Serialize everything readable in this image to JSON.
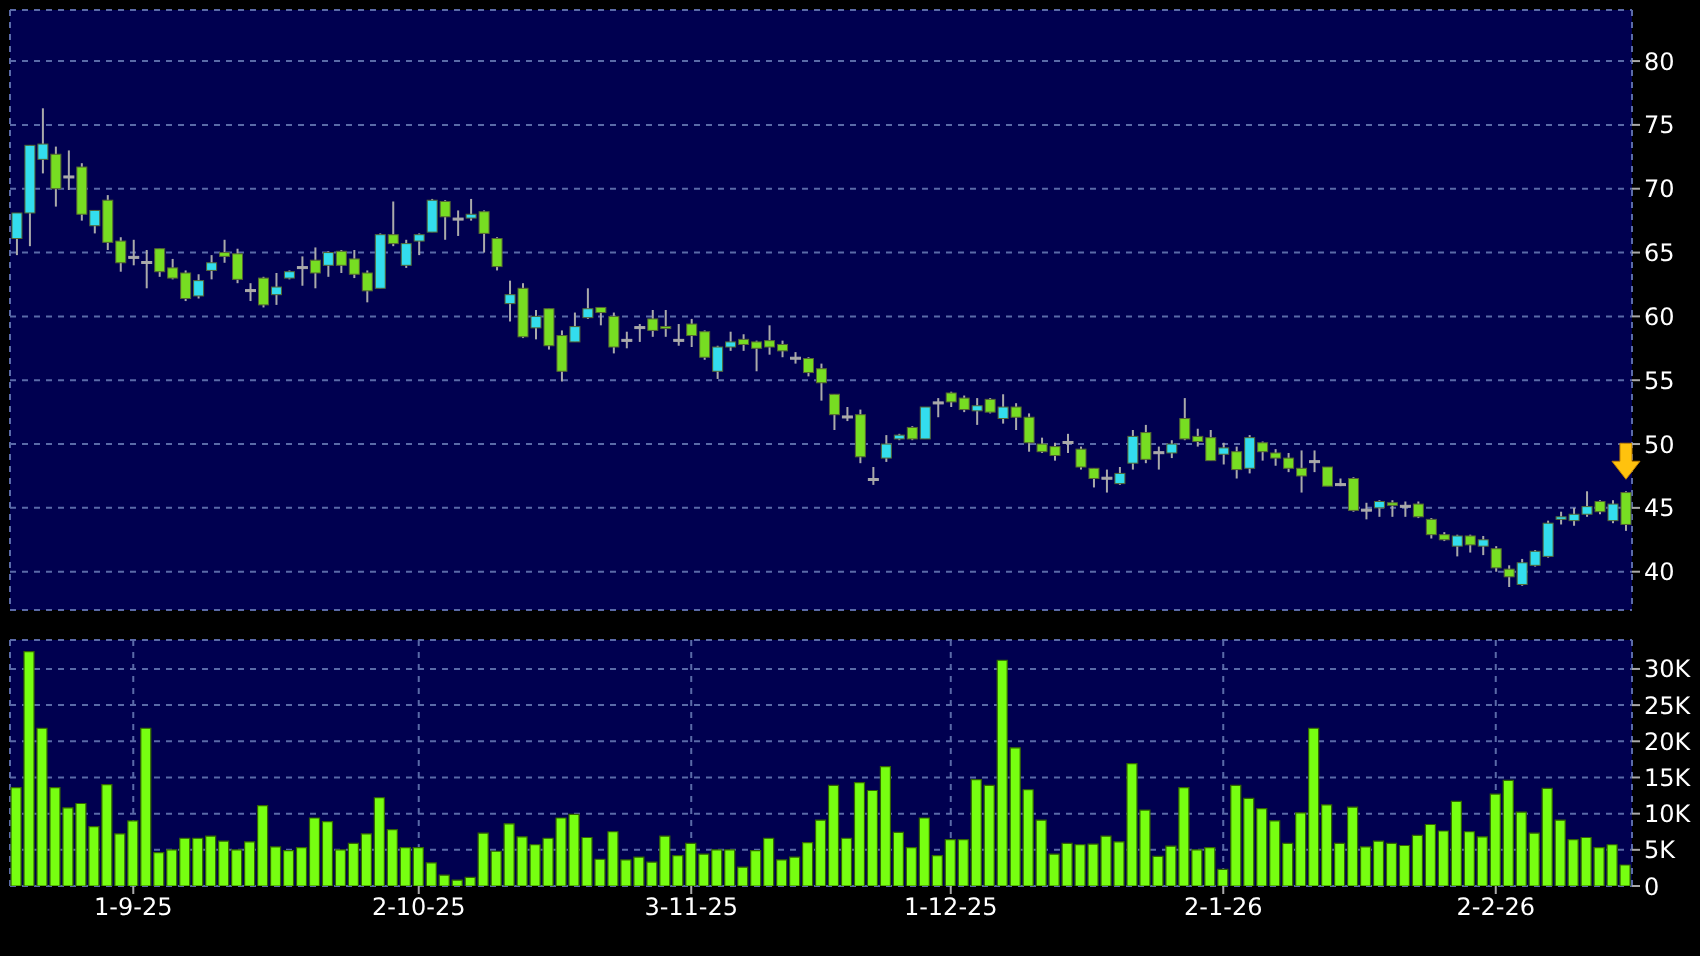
{
  "chart_data": [
    {
      "type": "candlestick",
      "tick_labels": "y",
      "grid": true,
      "categories": [
        null,
        null,
        null,
        null,
        null,
        null,
        null,
        null,
        null,
        null,
        null,
        null,
        null,
        null,
        null,
        null,
        null,
        null,
        null,
        null,
        null,
        null,
        null,
        null,
        null,
        null,
        null,
        null,
        null,
        null,
        null,
        null,
        null,
        null,
        null,
        null,
        null,
        null,
        null,
        null,
        null,
        null,
        null,
        null,
        null,
        null,
        null,
        null,
        null,
        null,
        null,
        null,
        null,
        null,
        null,
        null,
        null,
        null,
        null,
        null,
        null,
        null,
        null,
        null,
        null,
        null,
        null,
        null,
        null,
        null,
        null,
        null,
        null,
        null,
        null,
        null,
        null,
        null,
        null,
        null,
        null,
        null,
        null,
        null,
        null,
        null,
        null,
        null,
        null,
        null,
        null,
        null,
        null,
        null,
        null,
        null,
        null,
        null,
        null,
        null,
        null,
        null,
        null,
        null,
        null,
        null,
        null,
        null,
        null,
        null,
        null,
        null,
        null,
        null,
        null,
        null,
        null,
        null,
        null,
        null,
        null,
        null,
        null,
        null,
        null
      ],
      "ohlc": [
        [
          66.1,
          68.1,
          64.8,
          68.1
        ],
        [
          68.1,
          73.4,
          65.5,
          73.4
        ],
        [
          72.3,
          76.3,
          71.2,
          73.5
        ],
        [
          72.7,
          73.3,
          68.6,
          70.0
        ],
        [
          71.0,
          73.0,
          69.9,
          71.0
        ],
        [
          71.7,
          72.0,
          67.5,
          68.0
        ],
        [
          67.1,
          68.3,
          66.5,
          68.3
        ],
        [
          69.1,
          69.5,
          65.2,
          65.8
        ],
        [
          65.9,
          66.2,
          63.5,
          64.2
        ],
        [
          64.7,
          66.0,
          64.0,
          64.7
        ],
        [
          64.3,
          65.2,
          62.2,
          64.3
        ],
        [
          65.3,
          65.3,
          63.1,
          63.5
        ],
        [
          63.8,
          64.5,
          62.9,
          63.0
        ],
        [
          63.4,
          63.6,
          61.2,
          61.4
        ],
        [
          61.6,
          63.3,
          61.4,
          62.8
        ],
        [
          63.6,
          64.8,
          62.9,
          64.2
        ],
        [
          65.0,
          66.0,
          64.2,
          64.7
        ],
        [
          64.9,
          65.3,
          62.6,
          62.9
        ],
        [
          62.1,
          62.6,
          61.2,
          62.1
        ],
        [
          63.0,
          63.1,
          60.7,
          60.9
        ],
        [
          61.7,
          63.4,
          60.9,
          62.3
        ],
        [
          63.0,
          63.6,
          62.9,
          63.5
        ],
        [
          63.9,
          64.7,
          62.4,
          63.9
        ],
        [
          64.4,
          65.4,
          62.2,
          63.4
        ],
        [
          64.0,
          65.1,
          63.1,
          65.0
        ],
        [
          65.1,
          65.2,
          63.4,
          64.0
        ],
        [
          64.5,
          65.2,
          63.0,
          63.3
        ],
        [
          63.4,
          63.6,
          61.1,
          62.0
        ],
        [
          62.2,
          66.5,
          62.2,
          66.4
        ],
        [
          66.4,
          69.0,
          65.5,
          65.7
        ],
        [
          64.0,
          66.0,
          63.8,
          65.7
        ],
        [
          65.9,
          66.5,
          64.8,
          66.4
        ],
        [
          66.6,
          69.2,
          66.6,
          69.1
        ],
        [
          69.0,
          69.1,
          66.0,
          67.8
        ],
        [
          67.7,
          68.3,
          66.3,
          67.7
        ],
        [
          67.7,
          69.2,
          67.5,
          68.0
        ],
        [
          68.2,
          68.3,
          65.0,
          66.5
        ],
        [
          66.1,
          66.2,
          63.6,
          63.9
        ],
        [
          61.0,
          62.8,
          59.6,
          61.7
        ],
        [
          62.2,
          62.6,
          58.3,
          58.4
        ],
        [
          59.1,
          60.5,
          58.2,
          60.0
        ],
        [
          60.6,
          60.6,
          57.4,
          57.7
        ],
        [
          58.5,
          58.9,
          54.9,
          55.7
        ],
        [
          58.0,
          60.3,
          58.0,
          59.2
        ],
        [
          59.9,
          62.2,
          59.8,
          60.6
        ],
        [
          60.7,
          60.7,
          59.3,
          60.3
        ],
        [
          60.0,
          60.3,
          57.1,
          57.6
        ],
        [
          58.2,
          58.8,
          57.5,
          58.2
        ],
        [
          59.2,
          59.4,
          58.0,
          59.2
        ],
        [
          59.8,
          60.5,
          58.4,
          58.9
        ],
        [
          59.2,
          60.5,
          58.4,
          59.1
        ],
        [
          58.2,
          59.4,
          57.7,
          58.2
        ],
        [
          59.4,
          59.8,
          57.6,
          58.5
        ],
        [
          58.8,
          58.9,
          56.6,
          56.8
        ],
        [
          55.7,
          57.7,
          55.1,
          57.6
        ],
        [
          57.6,
          58.8,
          57.3,
          58.0
        ],
        [
          58.2,
          58.6,
          57.3,
          57.8
        ],
        [
          58.0,
          58.1,
          55.7,
          57.5
        ],
        [
          58.1,
          59.3,
          57.0,
          57.6
        ],
        [
          57.8,
          58.1,
          56.8,
          57.3
        ],
        [
          56.8,
          57.2,
          56.3,
          56.8
        ],
        [
          56.7,
          56.8,
          55.3,
          55.6
        ],
        [
          55.9,
          56.3,
          53.4,
          54.8
        ],
        [
          53.9,
          53.9,
          51.1,
          52.3
        ],
        [
          52.2,
          52.9,
          51.8,
          52.2
        ],
        [
          52.3,
          52.7,
          48.5,
          49.0
        ],
        [
          47.3,
          48.2,
          46.8,
          47.3
        ],
        [
          48.9,
          50.7,
          48.6,
          50.0
        ],
        [
          50.4,
          50.8,
          50.3,
          50.7
        ],
        [
          51.3,
          51.4,
          50.3,
          50.4
        ],
        [
          50.4,
          52.9,
          50.4,
          52.9
        ],
        [
          53.3,
          53.6,
          52.1,
          53.3
        ],
        [
          54.0,
          54.1,
          52.9,
          53.3
        ],
        [
          53.6,
          53.8,
          52.5,
          52.7
        ],
        [
          52.6,
          53.6,
          51.5,
          53.0
        ],
        [
          53.5,
          53.6,
          52.4,
          52.5
        ],
        [
          52.0,
          53.9,
          51.6,
          52.9
        ],
        [
          52.9,
          53.2,
          51.1,
          52.1
        ],
        [
          52.1,
          52.4,
          49.4,
          50.1
        ],
        [
          50.0,
          50.5,
          49.3,
          49.4
        ],
        [
          49.8,
          50.1,
          48.7,
          49.1
        ],
        [
          50.2,
          50.8,
          49.3,
          50.2
        ],
        [
          49.6,
          49.8,
          48.0,
          48.2
        ],
        [
          48.1,
          48.1,
          46.6,
          47.3
        ],
        [
          47.4,
          48.0,
          46.2,
          47.4
        ],
        [
          46.9,
          48.2,
          46.8,
          47.7
        ],
        [
          48.5,
          51.1,
          48.0,
          50.6
        ],
        [
          50.9,
          51.5,
          48.5,
          48.8
        ],
        [
          49.4,
          49.8,
          48.0,
          49.4
        ],
        [
          49.3,
          50.3,
          48.9,
          50.0
        ],
        [
          52.0,
          53.6,
          50.3,
          50.4
        ],
        [
          50.6,
          51.2,
          49.8,
          50.2
        ],
        [
          50.5,
          51.1,
          48.7,
          48.7
        ],
        [
          49.2,
          50.1,
          48.4,
          49.7
        ],
        [
          49.4,
          49.8,
          47.3,
          48.0
        ],
        [
          48.1,
          50.7,
          47.7,
          50.5
        ],
        [
          50.1,
          50.2,
          48.7,
          49.4
        ],
        [
          49.3,
          49.6,
          48.3,
          48.9
        ],
        [
          48.9,
          49.3,
          47.8,
          48.1
        ],
        [
          48.1,
          49.5,
          46.2,
          47.5
        ],
        [
          48.7,
          49.5,
          47.8,
          48.7
        ],
        [
          48.2,
          48.2,
          46.7,
          46.7
        ],
        [
          46.9,
          47.3,
          46.7,
          46.9
        ],
        [
          47.3,
          47.4,
          44.7,
          44.8
        ],
        [
          44.9,
          45.4,
          44.1,
          44.9
        ],
        [
          45.0,
          45.6,
          44.3,
          45.5
        ],
        [
          45.4,
          45.6,
          44.3,
          45.2
        ],
        [
          45.2,
          45.5,
          44.3,
          45.2
        ],
        [
          45.3,
          45.5,
          44.2,
          44.3
        ],
        [
          44.1,
          44.2,
          42.6,
          42.9
        ],
        [
          42.9,
          43.1,
          42.4,
          42.5
        ],
        [
          42.0,
          42.9,
          41.2,
          42.8
        ],
        [
          42.8,
          42.9,
          41.5,
          42.1
        ],
        [
          42.0,
          42.8,
          41.3,
          42.5
        ],
        [
          41.8,
          42.0,
          40.0,
          40.3
        ],
        [
          40.2,
          40.5,
          38.8,
          39.6
        ],
        [
          39.0,
          41.0,
          38.9,
          40.7
        ],
        [
          40.5,
          41.7,
          40.4,
          41.6
        ],
        [
          41.2,
          44.0,
          41.1,
          43.8
        ],
        [
          44.1,
          44.7,
          43.7,
          44.3
        ],
        [
          44.0,
          45.0,
          43.6,
          44.5
        ],
        [
          44.5,
          46.3,
          44.3,
          45.1
        ],
        [
          45.5,
          45.6,
          44.5,
          44.7
        ],
        [
          44.0,
          45.6,
          43.8,
          45.3
        ],
        [
          46.2,
          46.3,
          43.2,
          43.7
        ]
      ],
      "colors": [
        "#33ddee",
        "#33ddee",
        "#33ddee",
        "#77dd22",
        "#aaaaaa",
        "#77dd22",
        "#33ddee",
        "#77dd22",
        "#77dd22",
        "#aaaaaa",
        "#aaaaaa",
        "#77dd22",
        "#77dd22",
        "#77dd22",
        "#33ddee",
        "#33ddee",
        "#77dd22",
        "#77dd22",
        "#aaaaaa",
        "#77dd22",
        "#33ddee",
        "#33ddee",
        "#aaaaaa",
        "#77dd22",
        "#33ddee",
        "#77dd22",
        "#77dd22",
        "#77dd22",
        "#33ddee",
        "#77dd22",
        "#33ddee",
        "#33ddee",
        "#33ddee",
        "#77dd22",
        "#aaaaaa",
        "#33ddee",
        "#77dd22",
        "#77dd22",
        "#33ddee",
        "#77dd22",
        "#33ddee",
        "#77dd22",
        "#77dd22",
        "#33ddee",
        "#33ddee",
        "#77dd22",
        "#77dd22",
        "#aaaaaa",
        "#aaaaaa",
        "#77dd22",
        "#77dd22",
        "#aaaaaa",
        "#77dd22",
        "#77dd22",
        "#33ddee",
        "#33ddee",
        "#77dd22",
        "#77dd22",
        "#77dd22",
        "#77dd22",
        "#aaaaaa",
        "#77dd22",
        "#77dd22",
        "#77dd22",
        "#aaaaaa",
        "#77dd22",
        "#aaaaaa",
        "#33ddee",
        "#33ddee",
        "#77dd22",
        "#33ddee",
        "#aaaaaa",
        "#77dd22",
        "#77dd22",
        "#33ddee",
        "#77dd22",
        "#33ddee",
        "#77dd22",
        "#77dd22",
        "#77dd22",
        "#77dd22",
        "#aaaaaa",
        "#77dd22",
        "#77dd22",
        "#aaaaaa",
        "#33ddee",
        "#33ddee",
        "#77dd22",
        "#aaaaaa",
        "#33ddee",
        "#77dd22",
        "#77dd22",
        "#77dd22",
        "#33ddee",
        "#77dd22",
        "#33ddee",
        "#77dd22",
        "#77dd22",
        "#77dd22",
        "#77dd22",
        "#aaaaaa",
        "#77dd22",
        "#aaaaaa",
        "#77dd22",
        "#aaaaaa",
        "#33ddee",
        "#77dd22",
        "#aaaaaa",
        "#77dd22",
        "#77dd22",
        "#77dd22",
        "#33ddee",
        "#77dd22",
        "#33ddee",
        "#77dd22",
        "#77dd22",
        "#33ddee",
        "#33ddee",
        "#33ddee",
        "#33ddee",
        "#33ddee",
        "#33ddee",
        "#77dd22",
        "#33ddee",
        "#77dd22"
      ],
      "ylim": [
        37,
        84
      ],
      "yticks": [
        40,
        45,
        50,
        55,
        60,
        65,
        70,
        75,
        80
      ]
    },
    {
      "type": "bar",
      "grid": true,
      "color": "#77ff11",
      "categories": [
        null,
        null,
        null,
        null,
        null,
        null,
        null,
        null,
        null,
        "1-9-25",
        null,
        null,
        null,
        null,
        null,
        null,
        null,
        null,
        null,
        null,
        null,
        null,
        null,
        null,
        null,
        null,
        null,
        null,
        null,
        null,
        null,
        "2-10-25",
        null,
        null,
        null,
        null,
        null,
        null,
        null,
        null,
        null,
        null,
        null,
        null,
        null,
        null,
        null,
        null,
        null,
        null,
        null,
        null,
        "3-11-25",
        null,
        null,
        null,
        null,
        null,
        null,
        null,
        null,
        null,
        null,
        null,
        null,
        null,
        null,
        null,
        null,
        null,
        null,
        null,
        "1-12-25",
        null,
        null,
        null,
        null,
        null,
        null,
        null,
        null,
        null,
        null,
        null,
        null,
        null,
        null,
        null,
        null,
        null,
        null,
        null,
        null,
        "2-1-26",
        null,
        null,
        null,
        null,
        null,
        null,
        null,
        null,
        null,
        null,
        null,
        null,
        null,
        null,
        null,
        null,
        null,
        null,
        null,
        null,
        "2-2-26",
        null,
        null,
        null,
        null,
        null,
        null,
        null,
        null,
        null,
        null
      ],
      "values": [
        13600,
        32400,
        21800,
        13600,
        10800,
        11400,
        8200,
        14000,
        7200,
        9000,
        21800,
        4600,
        5000,
        6600,
        6600,
        6900,
        6200,
        5000,
        6100,
        11100,
        5400,
        4900,
        5300,
        9400,
        8900,
        5000,
        5900,
        7200,
        12200,
        7800,
        5300,
        5300,
        3200,
        1500,
        800,
        1200,
        7300,
        4800,
        8600,
        6800,
        5700,
        6600,
        9400,
        9900,
        6700,
        3700,
        7500,
        3600,
        4000,
        3300,
        6900,
        4200,
        5900,
        4400,
        5000,
        5000,
        2600,
        4900,
        6600,
        3600,
        4000,
        6000,
        9100,
        13900,
        6600,
        14300,
        13200,
        16500,
        7400,
        5300,
        9400,
        4200,
        6400,
        6400,
        14700,
        13900,
        31200,
        19100,
        13300,
        9100,
        4400,
        5900,
        5700,
        5800,
        6900,
        6100,
        16900,
        10500,
        4100,
        5500,
        13600,
        5000,
        5300,
        2300,
        13900,
        12100,
        10700,
        9000,
        5900,
        10100,
        21800,
        11200,
        5900,
        10900,
        5400,
        6200,
        5900,
        5600,
        7000,
        8500,
        7600,
        11700,
        7500,
        6800,
        12700,
        14600,
        10200,
        7300,
        13500,
        9100,
        6400,
        6700,
        5300,
        5700,
        2900
      ],
      "ylim": [
        0,
        34000
      ],
      "yticks": [
        0,
        {
          "value": 5000,
          "label": "5K"
        },
        {
          "value": 10000,
          "label": "10K"
        },
        {
          "value": 15000,
          "label": "15K"
        },
        {
          "value": 20000,
          "label": "20K"
        },
        {
          "value": 25000,
          "label": "25K"
        },
        {
          "value": 30000,
          "label": "30K"
        }
      ]
    }
  ]
}
